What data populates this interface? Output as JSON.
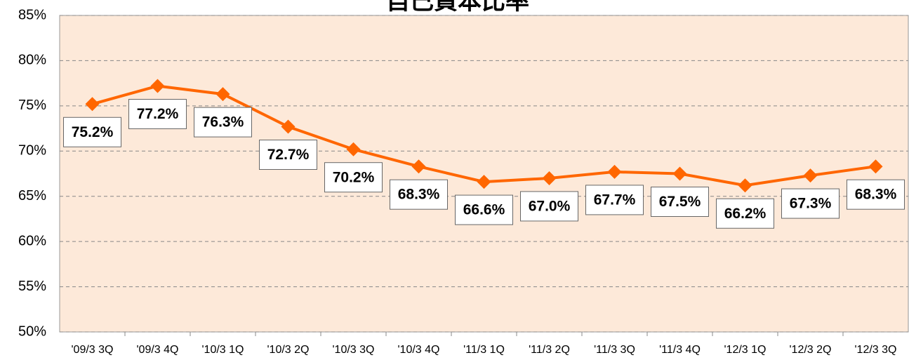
{
  "chart_data": {
    "type": "line",
    "title": "自己資本比率",
    "categories": [
      "'09/3 3Q",
      "'09/3 4Q",
      "'10/3 1Q",
      "'10/3 2Q",
      "'10/3 3Q",
      "'10/3 4Q",
      "'11/3 1Q",
      "'11/3 2Q",
      "'11/3 3Q",
      "'11/3 4Q",
      "'12/3 1Q",
      "'12/3 2Q",
      "'12/3 3Q"
    ],
    "values": [
      75.2,
      77.2,
      76.3,
      72.7,
      70.2,
      68.3,
      66.6,
      67.0,
      67.7,
      67.5,
      66.2,
      67.3,
      68.3
    ],
    "value_labels": [
      "75.2%",
      "77.2%",
      "76.3%",
      "72.7%",
      "70.2%",
      "68.3%",
      "66.6%",
      "67.0%",
      "67.7%",
      "67.5%",
      "66.2%",
      "67.3%",
      "68.3%"
    ],
    "color": "#ff6600",
    "ylim": [
      50,
      85
    ],
    "yticks": [
      {
        "value": 50,
        "label": "50%"
      },
      {
        "value": 55,
        "label": "55%"
      },
      {
        "value": 60,
        "label": "60%"
      },
      {
        "value": 65,
        "label": "65%"
      },
      {
        "value": 70,
        "label": "70%"
      },
      {
        "value": 75,
        "label": "75%"
      },
      {
        "value": 80,
        "label": "80%"
      },
      {
        "value": 85,
        "label": "85%"
      }
    ],
    "grid": true
  }
}
